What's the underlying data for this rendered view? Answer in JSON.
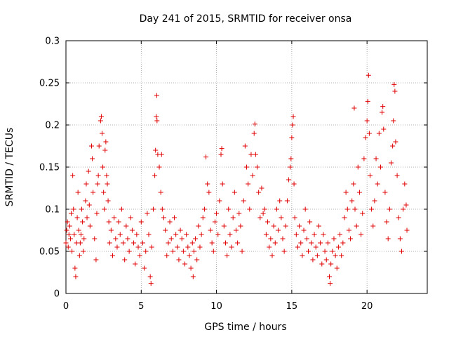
{
  "chart_data": {
    "type": "scatter",
    "title": "Day 241 of 2015, SRMTID for receiver onsa",
    "xlabel": "GPS time / hours",
    "ylabel": "SRMTID / TECUs",
    "xlim": [
      0,
      24
    ],
    "ylim": [
      0,
      0.3
    ],
    "xticks": [
      0,
      5,
      10,
      15,
      20
    ],
    "xtick_labels": [
      "0",
      "5",
      "10",
      "15",
      "20"
    ],
    "yticks": [
      0,
      0.05,
      0.1,
      0.15,
      0.2,
      0.25,
      0.3
    ],
    "ytick_labels": [
      "0",
      "0.05",
      "0.1",
      "0.15",
      "0.2",
      "0.25",
      "0.3"
    ],
    "grid": true,
    "marker": "+",
    "color": "#e00000",
    "series": [
      {
        "name": "SRMTID",
        "points": [
          [
            0.0,
            0.06
          ],
          [
            0.05,
            0.075
          ],
          [
            0.1,
            0.085
          ],
          [
            0.15,
            0.055
          ],
          [
            0.2,
            0.07
          ],
          [
            0.25,
            0.08
          ],
          [
            0.3,
            0.065
          ],
          [
            0.35,
            0.095
          ],
          [
            0.4,
            0.05
          ],
          [
            0.45,
            0.14
          ],
          [
            0.5,
            0.1
          ],
          [
            0.55,
            0.07
          ],
          [
            0.6,
            0.03
          ],
          [
            0.65,
            0.02
          ],
          [
            0.7,
            0.06
          ],
          [
            0.75,
            0.09
          ],
          [
            0.8,
            0.12
          ],
          [
            0.85,
            0.075
          ],
          [
            0.9,
            0.045
          ],
          [
            0.95,
            0.06
          ],
          [
            1.0,
            0.07
          ],
          [
            1.05,
            0.1
          ],
          [
            1.1,
            0.085
          ],
          [
            1.15,
            0.05
          ],
          [
            1.2,
            0.065
          ],
          [
            1.3,
            0.11
          ],
          [
            1.35,
            0.13
          ],
          [
            1.4,
            0.09
          ],
          [
            1.5,
            0.145
          ],
          [
            1.55,
            0.105
          ],
          [
            1.6,
            0.08
          ],
          [
            1.7,
            0.175
          ],
          [
            1.75,
            0.16
          ],
          [
            1.8,
            0.12
          ],
          [
            1.9,
            0.065
          ],
          [
            2.0,
            0.04
          ],
          [
            2.05,
            0.095
          ],
          [
            2.1,
            0.13
          ],
          [
            2.15,
            0.14
          ],
          [
            2.2,
            0.175
          ],
          [
            2.3,
            0.205
          ],
          [
            2.35,
            0.21
          ],
          [
            2.4,
            0.19
          ],
          [
            2.45,
            0.15
          ],
          [
            2.5,
            0.12
          ],
          [
            2.55,
            0.1
          ],
          [
            2.6,
            0.17
          ],
          [
            2.65,
            0.18
          ],
          [
            2.7,
            0.14
          ],
          [
            2.75,
            0.13
          ],
          [
            2.8,
            0.11
          ],
          [
            2.85,
            0.085
          ],
          [
            2.9,
            0.06
          ],
          [
            3.0,
            0.075
          ],
          [
            3.1,
            0.045
          ],
          [
            3.2,
            0.09
          ],
          [
            3.3,
            0.065
          ],
          [
            3.4,
            0.055
          ],
          [
            3.5,
            0.085
          ],
          [
            3.6,
            0.07
          ],
          [
            3.7,
            0.1
          ],
          [
            3.8,
            0.06
          ],
          [
            3.9,
            0.04
          ],
          [
            4.0,
            0.08
          ],
          [
            4.1,
            0.065
          ],
          [
            4.2,
            0.05
          ],
          [
            4.3,
            0.09
          ],
          [
            4.4,
            0.075
          ],
          [
            4.5,
            0.06
          ],
          [
            4.6,
            0.035
          ],
          [
            4.7,
            0.07
          ],
          [
            4.8,
            0.055
          ],
          [
            4.9,
            0.045
          ],
          [
            5.0,
            0.085
          ],
          [
            5.1,
            0.06
          ],
          [
            5.2,
            0.03
          ],
          [
            5.3,
            0.05
          ],
          [
            5.4,
            0.095
          ],
          [
            5.5,
            0.07
          ],
          [
            5.6,
            0.02
          ],
          [
            5.65,
            0.012
          ],
          [
            5.7,
            0.055
          ],
          [
            5.8,
            0.1
          ],
          [
            5.9,
            0.14
          ],
          [
            5.95,
            0.17
          ],
          [
            6.0,
            0.21
          ],
          [
            6.03,
            0.235
          ],
          [
            6.05,
            0.205
          ],
          [
            6.1,
            0.165
          ],
          [
            6.2,
            0.15
          ],
          [
            6.3,
            0.12
          ],
          [
            6.35,
            0.165
          ],
          [
            6.4,
            0.1
          ],
          [
            6.5,
            0.09
          ],
          [
            6.6,
            0.075
          ],
          [
            6.7,
            0.045
          ],
          [
            6.8,
            0.06
          ],
          [
            6.9,
            0.085
          ],
          [
            7.0,
            0.065
          ],
          [
            7.1,
            0.05
          ],
          [
            7.2,
            0.09
          ],
          [
            7.3,
            0.07
          ],
          [
            7.4,
            0.055
          ],
          [
            7.5,
            0.04
          ],
          [
            7.6,
            0.075
          ],
          [
            7.7,
            0.065
          ],
          [
            7.8,
            0.05
          ],
          [
            7.9,
            0.035
          ],
          [
            8.0,
            0.07
          ],
          [
            8.1,
            0.055
          ],
          [
            8.2,
            0.045
          ],
          [
            8.3,
            0.03
          ],
          [
            8.4,
            0.06
          ],
          [
            8.45,
            0.02
          ],
          [
            8.5,
            0.05
          ],
          [
            8.6,
            0.065
          ],
          [
            8.7,
            0.04
          ],
          [
            8.8,
            0.08
          ],
          [
            8.9,
            0.055
          ],
          [
            9.0,
            0.07
          ],
          [
            9.1,
            0.09
          ],
          [
            9.2,
            0.1
          ],
          [
            9.3,
            0.162
          ],
          [
            9.4,
            0.13
          ],
          [
            9.5,
            0.12
          ],
          [
            9.6,
            0.075
          ],
          [
            9.7,
            0.06
          ],
          [
            9.8,
            0.05
          ],
          [
            9.9,
            0.085
          ],
          [
            10.0,
            0.095
          ],
          [
            10.1,
            0.07
          ],
          [
            10.2,
            0.11
          ],
          [
            10.3,
            0.165
          ],
          [
            10.35,
            0.172
          ],
          [
            10.4,
            0.13
          ],
          [
            10.5,
            0.08
          ],
          [
            10.6,
            0.06
          ],
          [
            10.7,
            0.045
          ],
          [
            10.8,
            0.1
          ],
          [
            10.9,
            0.07
          ],
          [
            11.0,
            0.055
          ],
          [
            11.1,
            0.09
          ],
          [
            11.2,
            0.12
          ],
          [
            11.3,
            0.075
          ],
          [
            11.4,
            0.06
          ],
          [
            11.5,
            0.095
          ],
          [
            11.6,
            0.08
          ],
          [
            11.7,
            0.05
          ],
          [
            11.8,
            0.11
          ],
          [
            11.9,
            0.175
          ],
          [
            12.0,
            0.15
          ],
          [
            12.1,
            0.13
          ],
          [
            12.2,
            0.1
          ],
          [
            12.3,
            0.165
          ],
          [
            12.4,
            0.14
          ],
          [
            12.5,
            0.19
          ],
          [
            12.55,
            0.201
          ],
          [
            12.6,
            0.165
          ],
          [
            12.7,
            0.15
          ],
          [
            12.8,
            0.12
          ],
          [
            12.9,
            0.09
          ],
          [
            13.0,
            0.125
          ],
          [
            13.1,
            0.095
          ],
          [
            13.2,
            0.1
          ],
          [
            13.3,
            0.07
          ],
          [
            13.4,
            0.085
          ],
          [
            13.5,
            0.055
          ],
          [
            13.6,
            0.065
          ],
          [
            13.7,
            0.045
          ],
          [
            13.8,
            0.08
          ],
          [
            13.9,
            0.06
          ],
          [
            14.0,
            0.1
          ],
          [
            14.1,
            0.075
          ],
          [
            14.2,
            0.11
          ],
          [
            14.3,
            0.09
          ],
          [
            14.4,
            0.065
          ],
          [
            14.5,
            0.05
          ],
          [
            14.6,
            0.08
          ],
          [
            14.7,
            0.11
          ],
          [
            14.8,
            0.135
          ],
          [
            14.9,
            0.15
          ],
          [
            14.95,
            0.16
          ],
          [
            15.0,
            0.185
          ],
          [
            15.05,
            0.2
          ],
          [
            15.1,
            0.21
          ],
          [
            15.15,
            0.13
          ],
          [
            15.2,
            0.09
          ],
          [
            15.3,
            0.07
          ],
          [
            15.4,
            0.055
          ],
          [
            15.5,
            0.08
          ],
          [
            15.6,
            0.06
          ],
          [
            15.7,
            0.045
          ],
          [
            15.8,
            0.075
          ],
          [
            15.9,
            0.1
          ],
          [
            16.0,
            0.065
          ],
          [
            16.1,
            0.05
          ],
          [
            16.2,
            0.085
          ],
          [
            16.3,
            0.06
          ],
          [
            16.4,
            0.04
          ],
          [
            16.5,
            0.07
          ],
          [
            16.6,
            0.055
          ],
          [
            16.7,
            0.045
          ],
          [
            16.8,
            0.08
          ],
          [
            16.9,
            0.06
          ],
          [
            17.0,
            0.035
          ],
          [
            17.1,
            0.07
          ],
          [
            17.2,
            0.05
          ],
          [
            17.3,
            0.04
          ],
          [
            17.4,
            0.06
          ],
          [
            17.5,
            0.02
          ],
          [
            17.55,
            0.012
          ],
          [
            17.6,
            0.035
          ],
          [
            17.7,
            0.05
          ],
          [
            17.8,
            0.065
          ],
          [
            17.9,
            0.045
          ],
          [
            18.0,
            0.03
          ],
          [
            18.1,
            0.055
          ],
          [
            18.2,
            0.07
          ],
          [
            18.3,
            0.045
          ],
          [
            18.4,
            0.06
          ],
          [
            18.5,
            0.09
          ],
          [
            18.6,
            0.12
          ],
          [
            18.7,
            0.1
          ],
          [
            18.8,
            0.075
          ],
          [
            18.9,
            0.065
          ],
          [
            19.0,
            0.11
          ],
          [
            19.1,
            0.13
          ],
          [
            19.15,
            0.22
          ],
          [
            19.2,
            0.1
          ],
          [
            19.3,
            0.08
          ],
          [
            19.4,
            0.15
          ],
          [
            19.5,
            0.12
          ],
          [
            19.6,
            0.07
          ],
          [
            19.7,
            0.095
          ],
          [
            19.8,
            0.16
          ],
          [
            19.9,
            0.185
          ],
          [
            20.0,
            0.205
          ],
          [
            20.05,
            0.228
          ],
          [
            20.1,
            0.259
          ],
          [
            20.15,
            0.19
          ],
          [
            20.2,
            0.14
          ],
          [
            20.3,
            0.1
          ],
          [
            20.4,
            0.08
          ],
          [
            20.5,
            0.11
          ],
          [
            20.6,
            0.16
          ],
          [
            20.7,
            0.13
          ],
          [
            20.8,
            0.19
          ],
          [
            20.9,
            0.15
          ],
          [
            21.0,
            0.215
          ],
          [
            21.05,
            0.222
          ],
          [
            21.1,
            0.195
          ],
          [
            21.2,
            0.12
          ],
          [
            21.3,
            0.085
          ],
          [
            21.4,
            0.065
          ],
          [
            21.5,
            0.1
          ],
          [
            21.6,
            0.155
          ],
          [
            21.7,
            0.175
          ],
          [
            21.75,
            0.205
          ],
          [
            21.8,
            0.248
          ],
          [
            21.85,
            0.24
          ],
          [
            21.9,
            0.18
          ],
          [
            22.0,
            0.14
          ],
          [
            22.1,
            0.09
          ],
          [
            22.2,
            0.065
          ],
          [
            22.3,
            0.05
          ],
          [
            22.4,
            0.1
          ],
          [
            22.5,
            0.13
          ],
          [
            22.6,
            0.105
          ],
          [
            22.65,
            0.075
          ]
        ]
      }
    ]
  }
}
